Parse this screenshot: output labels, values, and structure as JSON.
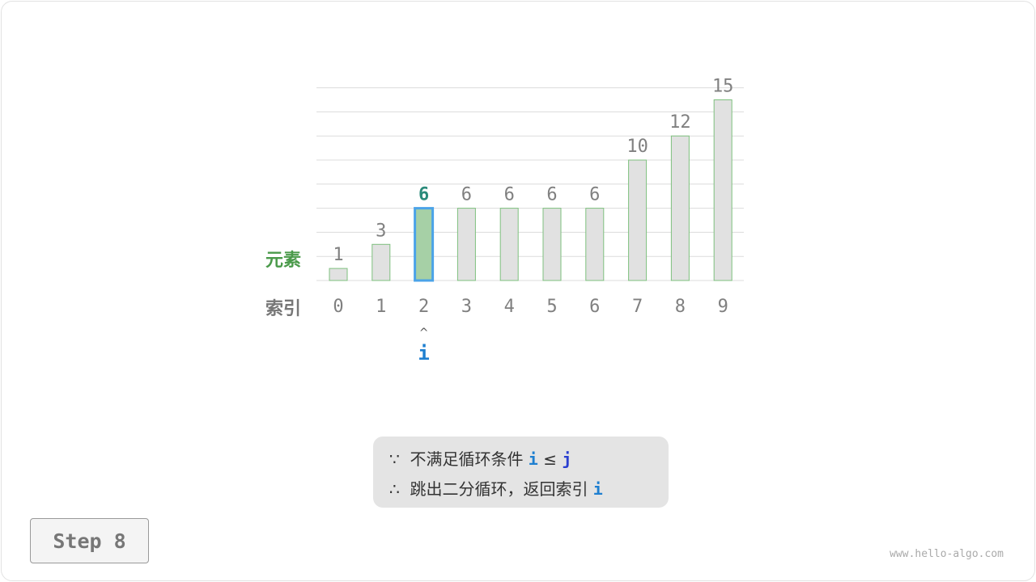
{
  "chart_data": {
    "type": "bar",
    "categories": [
      "0",
      "1",
      "2",
      "3",
      "4",
      "5",
      "6",
      "7",
      "8",
      "9"
    ],
    "values": [
      1,
      3,
      6,
      6,
      6,
      6,
      6,
      10,
      12,
      15
    ],
    "highlight_index": 2,
    "ylim": [
      0,
      16
    ],
    "grid": true,
    "row_labels": {
      "values": "元素",
      "indices": "索引"
    },
    "pointer": {
      "symbol": "i",
      "index": 2,
      "arrow": "^"
    }
  },
  "note": {
    "line1_prefix": "∵  不满足循环条件 ",
    "line1_i": "i",
    "line1_op": " ≤ ",
    "line1_j": "j",
    "line2_prefix": "∴  跳出二分循环，返回索引 ",
    "line2_i": "i"
  },
  "step_label": "Step 8",
  "watermark": "www.hello-algo.com",
  "colors": {
    "bar": "#e1e1e1",
    "bar_border": "#7ec07e",
    "highlight": "#a6d0a6",
    "highlight_border": "#4ba3e8",
    "value_text": "#808080",
    "highlight_text": "#2a8a7a",
    "element_label": "#4a9a4a",
    "i_color": "#1e7fd0",
    "j_color": "#2a3fd0"
  }
}
